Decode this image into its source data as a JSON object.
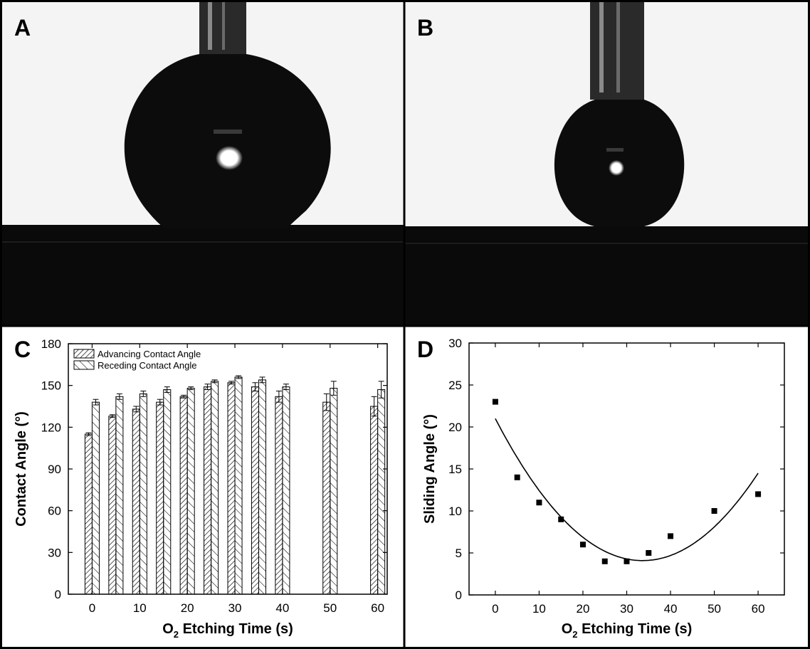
{
  "panels": {
    "a": {
      "label": "A"
    },
    "b": {
      "label": "B"
    },
    "c": {
      "label": "C"
    },
    "d": {
      "label": "D"
    }
  },
  "colors": {
    "ink": "#000000",
    "background": "#ffffff",
    "photo_bright": "#f4f4f4",
    "photo_dark": "#0a0a0a"
  },
  "chart_data": [
    {
      "type": "bar",
      "panel": "C",
      "xlabel_main": "O",
      "xlabel_sub": "2",
      "xlabel_rest": " Etching Time (s)",
      "ylabel": "Contact Angle (°)",
      "xlim": [
        -5,
        62
      ],
      "ylim": [
        0,
        180
      ],
      "xticks": [
        0,
        10,
        20,
        30,
        40,
        50,
        60
      ],
      "yticks": [
        0,
        30,
        60,
        90,
        120,
        150,
        180
      ],
      "legend_position": "top-left",
      "x": [
        0,
        5,
        10,
        15,
        20,
        25,
        30,
        35,
        40,
        50,
        60
      ],
      "series": [
        {
          "name": "Advancing Contact Angle",
          "pattern": "back-diagonal-dense",
          "values": [
            115,
            128,
            133,
            138,
            142,
            149,
            152,
            149,
            142,
            138,
            135
          ],
          "errors": [
            1,
            1,
            2,
            2,
            1,
            2,
            1,
            3,
            4,
            6,
            7
          ]
        },
        {
          "name": "Receding Contact Angle",
          "pattern": "diagonal-sparse",
          "values": [
            138,
            142,
            144,
            147,
            148,
            153,
            156,
            154,
            149,
            148,
            147
          ],
          "errors": [
            2,
            2,
            2,
            2,
            1,
            1,
            1,
            2,
            2,
            5,
            6
          ]
        }
      ]
    },
    {
      "type": "scatter",
      "panel": "D",
      "xlabel_main": "O",
      "xlabel_sub": "2",
      "xlabel_rest": " Etching Time (s)",
      "ylabel": "Sliding Angle (°)",
      "xlim": [
        -6,
        66
      ],
      "ylim": [
        0,
        30
      ],
      "xticks": [
        0,
        10,
        20,
        30,
        40,
        50,
        60
      ],
      "yticks": [
        0,
        5,
        10,
        15,
        20,
        25,
        30
      ],
      "points": {
        "x": [
          0,
          5,
          10,
          15,
          20,
          25,
          30,
          35,
          40,
          50,
          60
        ],
        "y": [
          23,
          14,
          11,
          9,
          6,
          4,
          4,
          5,
          7,
          10,
          12
        ]
      },
      "fit": {
        "kind": "quadratic",
        "x_range": [
          0,
          60
        ],
        "coefficients": [
          21.0,
          -1.006,
          0.01496
        ]
      }
    }
  ]
}
